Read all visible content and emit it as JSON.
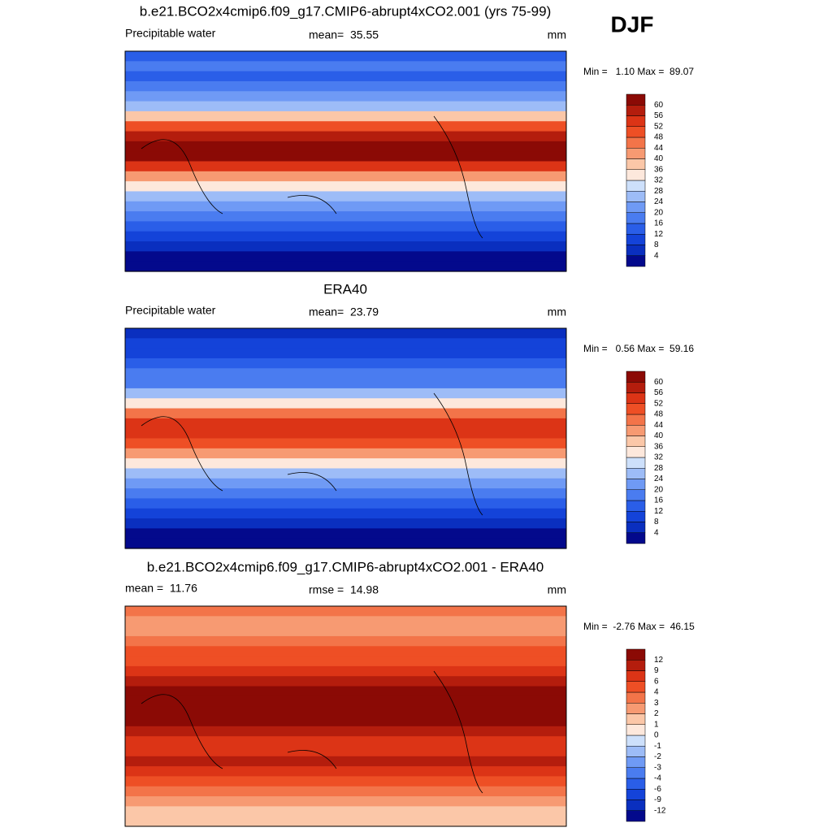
{
  "header": {
    "season": "DJF"
  },
  "panels": [
    {
      "title": "b.e21.BCO2x4cmip6.f09_g17.CMIP6-abrupt4xCO2.001 (yrs 75-99)",
      "left": "Precipitable water",
      "center": "mean=  35.55",
      "right": "mm",
      "minmax": "Min =   1.10 Max =  89.07",
      "colorbar": {
        "levels": [
          4,
          8,
          12,
          16,
          20,
          24,
          28,
          32,
          36,
          40,
          44,
          48,
          52,
          56,
          60
        ],
        "colors": [
          "#03098c",
          "#0a2fbf",
          "#1443d9",
          "#2a5ee8",
          "#4a7cf0",
          "#6f9af5",
          "#9dbcf7",
          "#cde0fb",
          "#fde8dc",
          "#fbc7a8",
          "#f79a72",
          "#f37449",
          "#ee4f25",
          "#dc3416",
          "#b41d0d",
          "#8b0a05"
        ]
      }
    },
    {
      "title": "ERA40",
      "left": "Precipitable water",
      "center": "mean=  23.79",
      "right": "mm",
      "minmax": "Min =   0.56 Max =  59.16",
      "colorbar": {
        "levels": [
          4,
          8,
          12,
          16,
          20,
          24,
          28,
          32,
          36,
          40,
          44,
          48,
          52,
          56,
          60
        ],
        "colors": [
          "#03098c",
          "#0a2fbf",
          "#1443d9",
          "#2a5ee8",
          "#4a7cf0",
          "#6f9af5",
          "#9dbcf7",
          "#cde0fb",
          "#fde8dc",
          "#fbc7a8",
          "#f79a72",
          "#f37449",
          "#ee4f25",
          "#dc3416",
          "#b41d0d",
          "#8b0a05"
        ]
      }
    },
    {
      "title": "b.e21.BCO2x4cmip6.f09_g17.CMIP6-abrupt4xCO2.001 - ERA40",
      "left": "mean =  11.76",
      "center": "rmse =  14.98",
      "right": "mm",
      "minmax": "Min =  -2.76 Max =  46.15",
      "colorbar": {
        "levels": [
          -12,
          -9,
          -6,
          -4,
          -3,
          -2,
          -1,
          0,
          1,
          2,
          3,
          4,
          6,
          9,
          12
        ],
        "colors": [
          "#03098c",
          "#0a2fbf",
          "#1443d9",
          "#2a5ee8",
          "#4a7cf0",
          "#6f9af5",
          "#9dbcf7",
          "#cde0fb",
          "#fde8dc",
          "#fbc7a8",
          "#f79a72",
          "#f37449",
          "#ee4f25",
          "#dc3416",
          "#b41d0d",
          "#8b0a05"
        ]
      }
    }
  ]
}
